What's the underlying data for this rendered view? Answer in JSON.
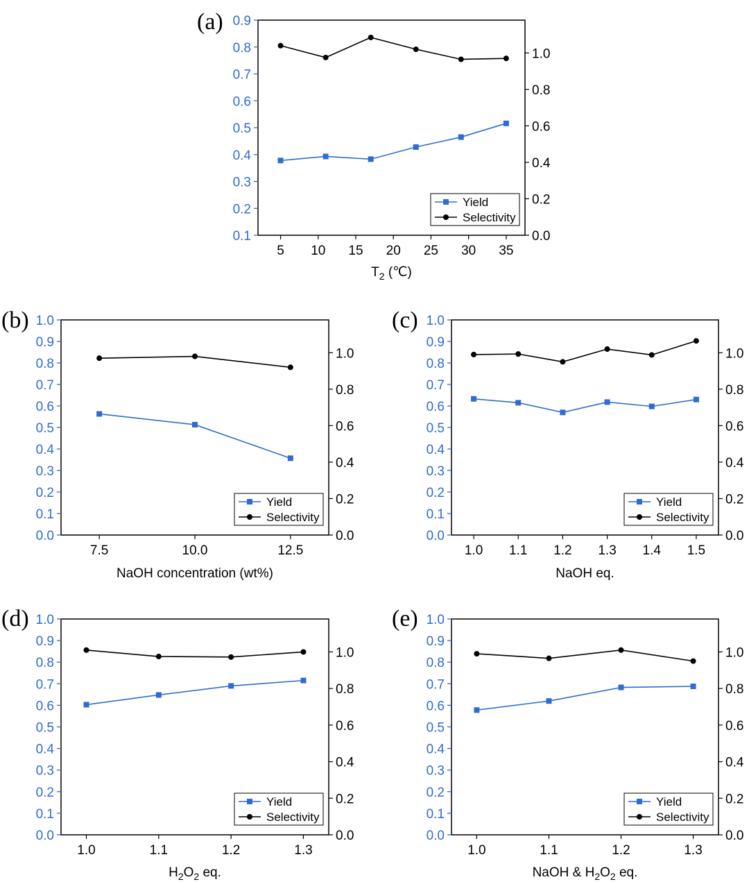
{
  "colors": {
    "yield": "#2e6bd2",
    "selectivity": "#000000",
    "left_axis": "#2e6bd2"
  },
  "chart_data": [
    {
      "panel": "(a)",
      "type": "line",
      "x": [
        5,
        11,
        17,
        23,
        29,
        35
      ],
      "xticks": [
        5,
        10,
        15,
        20,
        25,
        30,
        35
      ],
      "xlim": [
        2,
        37.5
      ],
      "xlabel": "T",
      "xlabel_sub": "2",
      "xlabel_suffix": " (℃)",
      "ylim_left": [
        0.1,
        0.9
      ],
      "yticks_left": [
        0.1,
        0.2,
        0.3,
        0.4,
        0.5,
        0.6,
        0.7,
        0.8,
        0.9
      ],
      "ylim_right": [
        0.0,
        1.18
      ],
      "yticks_right": [
        0.0,
        0.2,
        0.4,
        0.6,
        0.8,
        1.0
      ],
      "legend_position": "bottom-right",
      "series": [
        {
          "name": "Yield",
          "axis": "left",
          "marker": "square",
          "values": [
            0.378,
            0.393,
            0.383,
            0.428,
            0.465,
            0.516
          ]
        },
        {
          "name": "Selectivity",
          "axis": "right",
          "marker": "circle",
          "values": [
            1.04,
            0.975,
            1.085,
            1.02,
            0.965,
            0.97
          ]
        }
      ]
    },
    {
      "panel": "(b)",
      "type": "line",
      "x": [
        7.5,
        10.0,
        12.5
      ],
      "xticks": [
        7.5,
        10.0,
        12.5
      ],
      "xtick_decimals": 1,
      "xlim": [
        6.5,
        13.5
      ],
      "xlabel": "NaOH concentration (wt%)",
      "ylim_left": [
        0.0,
        1.0
      ],
      "yticks_left": [
        0.0,
        0.1,
        0.2,
        0.3,
        0.4,
        0.5,
        0.6,
        0.7,
        0.8,
        0.9,
        1.0
      ],
      "ylim_right": [
        0.0,
        1.18
      ],
      "yticks_right": [
        0.0,
        0.2,
        0.4,
        0.6,
        0.8,
        1.0
      ],
      "legend_position": "bottom-right",
      "series": [
        {
          "name": "Yield",
          "axis": "left",
          "marker": "square",
          "values": [
            0.563,
            0.513,
            0.357
          ]
        },
        {
          "name": "Selectivity",
          "axis": "right",
          "marker": "circle",
          "values": [
            0.97,
            0.98,
            0.92
          ]
        }
      ]
    },
    {
      "panel": "(c)",
      "type": "line",
      "x": [
        1.0,
        1.1,
        1.2,
        1.3,
        1.4,
        1.5
      ],
      "xticks": [
        1.0,
        1.1,
        1.2,
        1.3,
        1.4,
        1.5
      ],
      "xtick_decimals": 1,
      "xlim": [
        0.95,
        1.55
      ],
      "xlabel": "NaOH eq.",
      "ylim_left": [
        0.0,
        1.0
      ],
      "yticks_left": [
        0.0,
        0.1,
        0.2,
        0.3,
        0.4,
        0.5,
        0.6,
        0.7,
        0.8,
        0.9,
        1.0
      ],
      "ylim_right": [
        0.0,
        1.18
      ],
      "yticks_right": [
        0.0,
        0.2,
        0.4,
        0.6,
        0.8,
        1.0
      ],
      "legend_position": "bottom-right",
      "series": [
        {
          "name": "Yield",
          "axis": "left",
          "marker": "square",
          "values": [
            0.633,
            0.615,
            0.57,
            0.618,
            0.598,
            0.63
          ]
        },
        {
          "name": "Selectivity",
          "axis": "right",
          "marker": "circle",
          "values": [
            0.99,
            0.993,
            0.95,
            1.02,
            0.988,
            1.065
          ]
        }
      ]
    },
    {
      "panel": "(d)",
      "type": "line",
      "x": [
        1.0,
        1.1,
        1.2,
        1.3
      ],
      "xticks": [
        1.0,
        1.1,
        1.2,
        1.3
      ],
      "xtick_decimals": 1,
      "xlim": [
        0.965,
        1.335
      ],
      "xlabel": "H",
      "xlabel_sub": "2",
      "xlabel_mid": "O",
      "xlabel_sub2": "2",
      "xlabel_suffix": " eq.",
      "ylim_left": [
        0.0,
        1.0
      ],
      "yticks_left": [
        0.0,
        0.1,
        0.2,
        0.3,
        0.4,
        0.5,
        0.6,
        0.7,
        0.8,
        0.9,
        1.0
      ],
      "ylim_right": [
        0.0,
        1.18
      ],
      "yticks_right": [
        0.0,
        0.2,
        0.4,
        0.6,
        0.8,
        1.0
      ],
      "legend_position": "bottom-right",
      "series": [
        {
          "name": "Yield",
          "axis": "left",
          "marker": "square",
          "values": [
            0.603,
            0.648,
            0.69,
            0.715
          ]
        },
        {
          "name": "Selectivity",
          "axis": "right",
          "marker": "circle",
          "values": [
            1.01,
            0.975,
            0.972,
            1.0
          ]
        }
      ]
    },
    {
      "panel": "(e)",
      "type": "line",
      "x": [
        1.0,
        1.1,
        1.2,
        1.3
      ],
      "xticks": [
        1.0,
        1.1,
        1.2,
        1.3
      ],
      "xtick_decimals": 1,
      "xlim": [
        0.965,
        1.335
      ],
      "xlabel": "NaOH & H",
      "xlabel_sub": "2",
      "xlabel_mid": "O",
      "xlabel_sub2": "2",
      "xlabel_suffix": " eq.",
      "ylim_left": [
        0.0,
        1.0
      ],
      "yticks_left": [
        0.0,
        0.1,
        0.2,
        0.3,
        0.4,
        0.5,
        0.6,
        0.7,
        0.8,
        0.9,
        1.0
      ],
      "ylim_right": [
        0.0,
        1.18
      ],
      "yticks_right": [
        0.0,
        0.2,
        0.4,
        0.6,
        0.8,
        1.0
      ],
      "legend_position": "bottom-right",
      "series": [
        {
          "name": "Yield",
          "axis": "left",
          "marker": "square",
          "values": [
            0.578,
            0.62,
            0.683,
            0.688
          ]
        },
        {
          "name": "Selectivity",
          "axis": "right",
          "marker": "circle",
          "values": [
            0.99,
            0.965,
            1.01,
            0.95
          ]
        }
      ]
    }
  ]
}
